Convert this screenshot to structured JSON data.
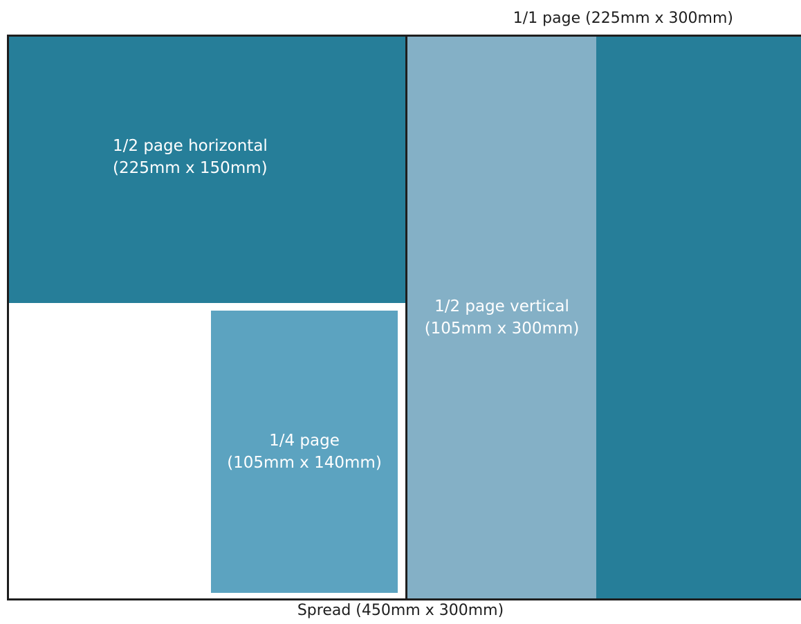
{
  "labels": {
    "full_page": "1/1 page (225mm x 300mm)",
    "spread": "Spread (450mm x 300mm)"
  },
  "blocks": {
    "half_horizontal": {
      "title": "1/2 page horizontal",
      "size": "(225mm x 150mm)"
    },
    "half_vertical": {
      "title": "1/2 page vertical",
      "size": "(105mm x 300mm)"
    },
    "quarter": {
      "title": "1/4 page",
      "size": "(105mm x 140mm)"
    }
  },
  "colors": {
    "dark_teal": "#267e99",
    "mid_blue": "#5ca3c0",
    "light_blue": "#84b0c6",
    "border": "#1e1e1e"
  }
}
